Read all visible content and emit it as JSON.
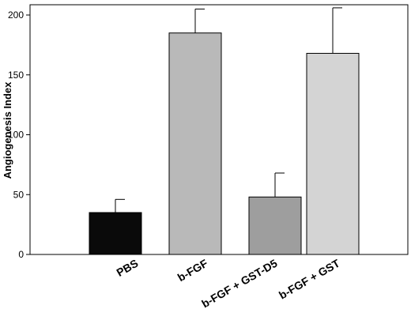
{
  "chart_data": {
    "type": "bar",
    "ylabel": "Angiogenesis Index",
    "ylim": [
      0,
      200
    ],
    "yticks": [
      0,
      50,
      100,
      150,
      200
    ],
    "categories": [
      "PBS",
      "b-FGF",
      "b-FGF + GST-D5",
      "b-FGF + GST"
    ],
    "values": [
      35,
      185,
      48,
      168
    ],
    "error_upper": [
      11,
      20,
      20,
      38
    ],
    "bar_colors": [
      "#0a0a0a",
      "#b9b9b9",
      "#9e9e9e",
      "#d4d4d4"
    ],
    "grid": false,
    "legend": "none"
  }
}
